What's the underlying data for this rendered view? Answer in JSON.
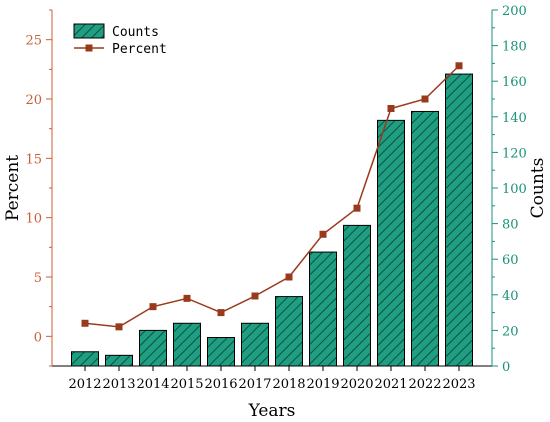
{
  "chart_data": {
    "type": "bar",
    "categories": [
      "2012",
      "2013",
      "2014",
      "2015",
      "2016",
      "2017",
      "2018",
      "2019",
      "2020",
      "2021",
      "2022",
      "2023"
    ],
    "series": [
      {
        "name": "Counts",
        "type": "bar",
        "axis": "right",
        "values": [
          8,
          6,
          20,
          24,
          16,
          24,
          39,
          64,
          79,
          138,
          143,
          164
        ]
      },
      {
        "name": "Percent",
        "type": "line",
        "axis": "left",
        "values": [
          1.1,
          0.8,
          2.5,
          3.2,
          2.0,
          3.4,
          5.0,
          8.6,
          10.8,
          19.2,
          20.0,
          22.8
        ]
      }
    ],
    "xlabel": "Years",
    "ylabel_left": "Percent",
    "ylabel_right": "Counts",
    "ylim_left": [
      -2.5,
      27.5
    ],
    "ylim_right": [
      0,
      200
    ],
    "yticks_left": [
      0,
      5,
      10,
      15,
      20,
      25
    ],
    "yticks_right": [
      0,
      20,
      40,
      60,
      80,
      100,
      120,
      140,
      160,
      180,
      200
    ],
    "legend_position": "top-left",
    "grid": false,
    "colors": {
      "bar_fill": "#1f9e82",
      "bar_hatch": "#0b5040",
      "bar_edge": "#000000",
      "line": "#9a3a1c",
      "left_axis": "#c8603a",
      "right_axis": "#1a9278"
    }
  }
}
